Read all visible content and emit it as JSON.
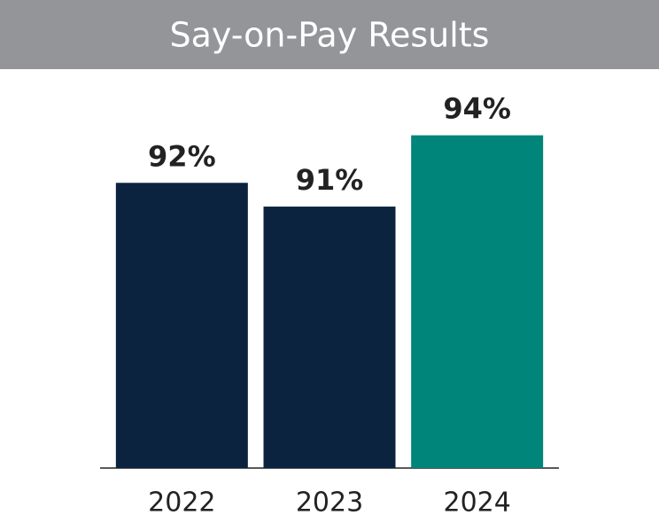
{
  "chart_data": {
    "type": "bar",
    "title": "Say-on-Pay Results",
    "categories": [
      "2022",
      "2023",
      "2024"
    ],
    "values": [
      92,
      91,
      94
    ],
    "value_labels": [
      "92%",
      "91%",
      "94%"
    ],
    "colors": [
      "#0c2340",
      "#0c2340",
      "#00857a"
    ],
    "ylim": [
      80,
      96
    ]
  }
}
